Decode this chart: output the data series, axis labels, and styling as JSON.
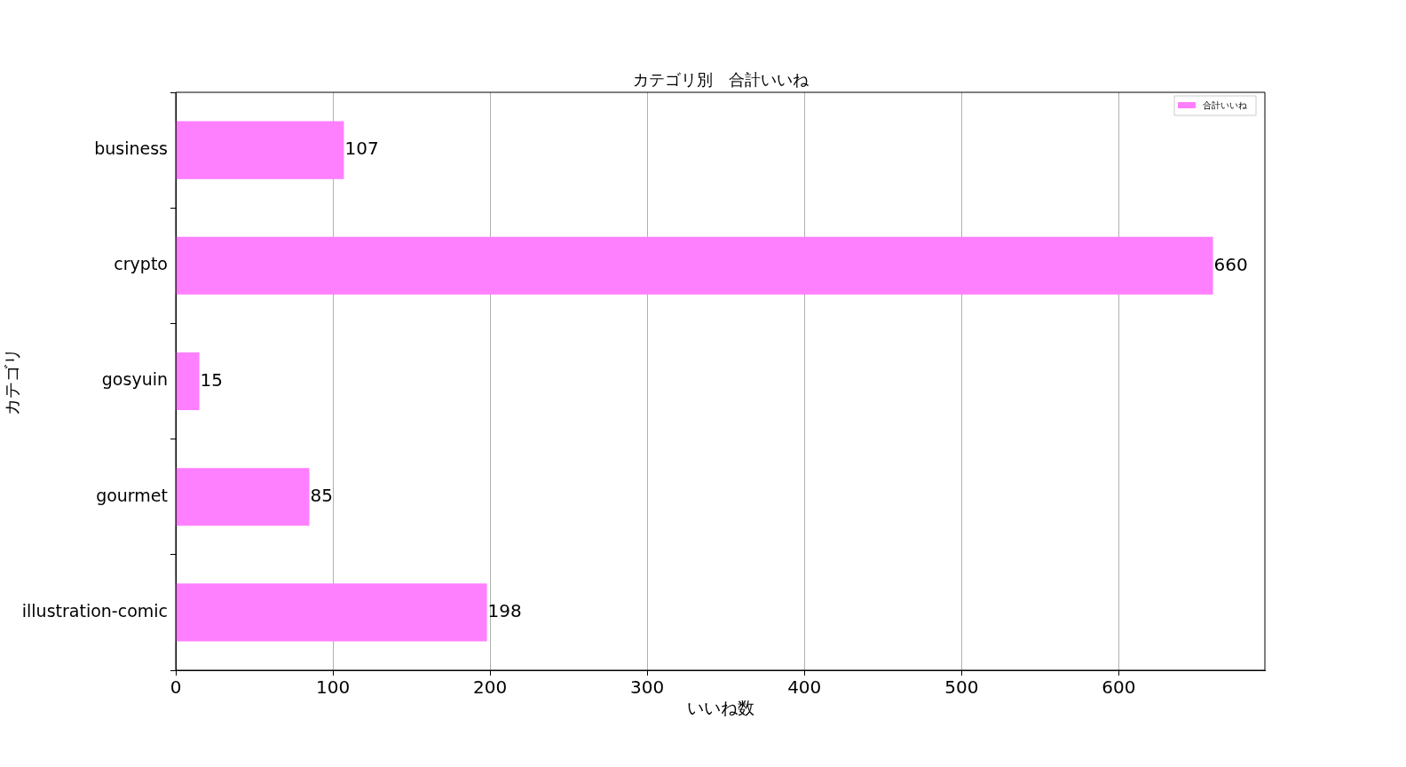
{
  "chart_data": {
    "type": "bar",
    "orientation": "horizontal",
    "title": "カテゴリ別　合計いいね",
    "xlabel": "いいね数",
    "ylabel": "カテゴリ",
    "categories": [
      "business",
      "crypto",
      "gosyuin",
      "gourmet",
      "illustration-comic"
    ],
    "series": [
      {
        "name": "合計いいね",
        "color": "#ff80ff",
        "values": [
          107,
          660,
          15,
          85,
          198
        ]
      }
    ],
    "xlim": [
      0,
      693
    ],
    "xticks": [
      0,
      100,
      200,
      300,
      400,
      500,
      600
    ],
    "grid": "x",
    "legend": "top right",
    "data_labels": true
  }
}
